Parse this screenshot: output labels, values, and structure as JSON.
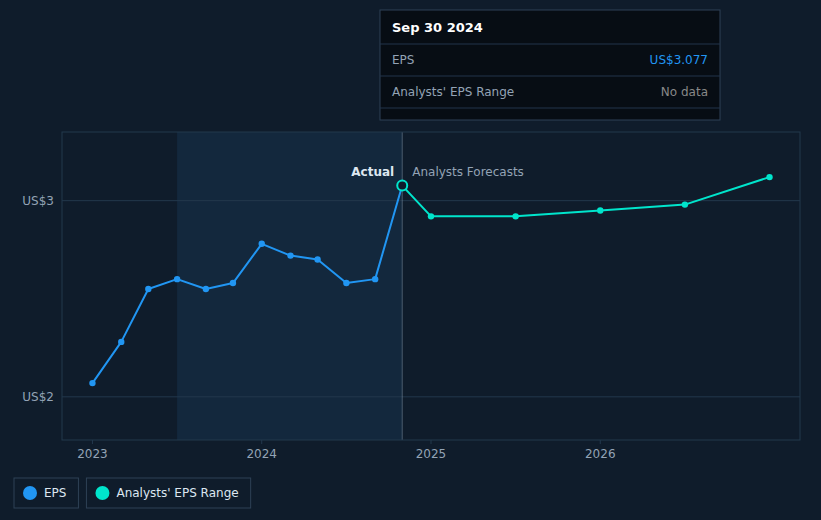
{
  "chart_data": {
    "type": "line",
    "series": [
      {
        "name": "EPS",
        "color": "#2196f3",
        "marker": "circle",
        "x": [
          2023.0,
          2023.17,
          2023.33,
          2023.5,
          2023.67,
          2023.83,
          2024.0,
          2024.17,
          2024.33,
          2024.5,
          2024.67,
          2024.83
        ],
        "values": [
          2.07,
          2.28,
          2.55,
          2.6,
          2.55,
          2.58,
          2.78,
          2.72,
          2.7,
          2.58,
          2.6,
          3.077
        ]
      },
      {
        "name": "Analysts' EPS Range",
        "color": "#00e5cc",
        "marker": "circle",
        "x": [
          2024.83,
          2025.0,
          2025.5,
          2026.0,
          2026.5,
          2027.0
        ],
        "values": [
          3.077,
          2.92,
          2.92,
          2.95,
          2.98,
          3.12
        ]
      }
    ],
    "xlim": [
      2022.82,
      2027.18
    ],
    "xticks": [
      2023,
      2024,
      2025,
      2026
    ],
    "ylim": [
      1.78,
      3.35
    ],
    "yticks": [
      {
        "value": 2,
        "label": "US$2"
      },
      {
        "value": 3,
        "label": "US$3"
      }
    ],
    "grid": true,
    "legend": "bottom left",
    "highlight": [
      2023.5,
      2024.83
    ],
    "annotations": [
      {
        "text": "Actual",
        "x": 2024.83,
        "y": 3.077
      },
      {
        "text": "Analysts Forecasts",
        "x": 2024.83,
        "y": 3.077
      }
    ],
    "tooltip": {
      "title": "Sep 30 2024",
      "rows": [
        {
          "label": "EPS",
          "value_label": "US$3.077",
          "color": "#2196f3"
        },
        {
          "label": "Analysts' EPS Range",
          "value_label": "No data",
          "color": "#888888"
        }
      ]
    }
  }
}
